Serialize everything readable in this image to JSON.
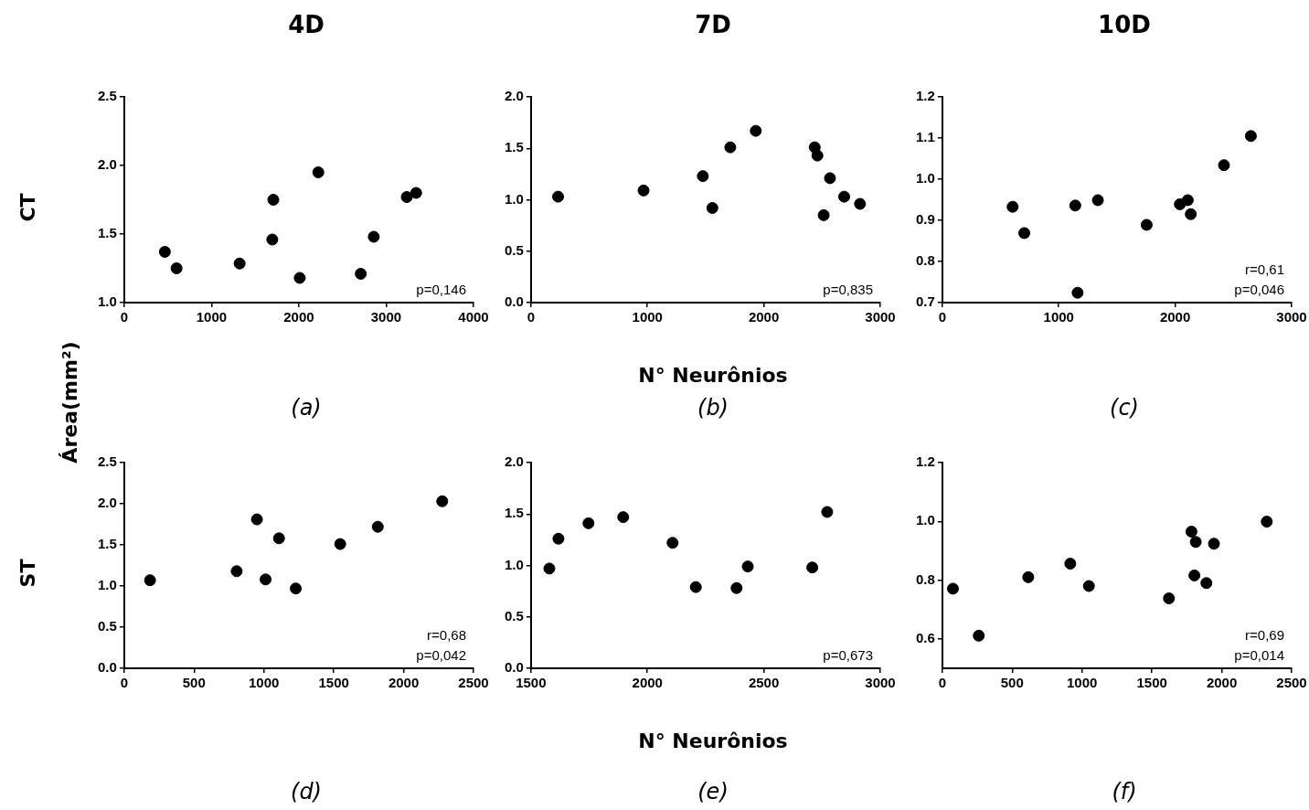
{
  "chart_data": [
    {
      "type": "scatter",
      "title": "4D",
      "subtitle": "(a)",
      "ylabel": "Área(mm²)",
      "annotations": [
        "CT",
        "p=0,146"
      ],
      "color": "#000000",
      "marker": "circle",
      "x": [
        466,
        600,
        1322,
        1696,
        1708,
        2010,
        2223,
        2709,
        2858,
        3236,
        3343
      ],
      "values": [
        1.37,
        1.25,
        1.285,
        1.46,
        1.75,
        1.18,
        1.95,
        1.21,
        1.48,
        1.77,
        1.8
      ],
      "xlim": [
        0,
        4000
      ],
      "xticks": [
        0,
        1000,
        2000,
        3000,
        4000
      ],
      "ylim": [
        1.0,
        2.5
      ],
      "yticks": [
        {
          "value": 1.0,
          "label": "1.0"
        },
        1.5,
        {
          "value": 2.0,
          "label": "2.0"
        },
        2.5
      ],
      "grid": false,
      "legend": false
    },
    {
      "type": "scatter",
      "title": "7D",
      "subtitle": "(b)",
      "xlabel": "N° Neurônios",
      "annotations": [
        "p=0,835"
      ],
      "color": "#000000",
      "marker": "circle",
      "x": [
        233,
        967,
        1476,
        1558,
        1712,
        1931,
        2437,
        2460,
        2514,
        2568,
        2690,
        2826
      ],
      "values": [
        1.03,
        1.09,
        1.23,
        0.92,
        1.51,
        1.67,
        1.51,
        1.43,
        0.85,
        1.21,
        1.03,
        0.96
      ],
      "xlim": [
        0,
        3000
      ],
      "xticks": [
        0,
        1000,
        2000,
        3000
      ],
      "ylim": [
        0.0,
        2.0
      ],
      "yticks": [
        {
          "value": 0,
          "label": "0.0"
        },
        0.5,
        {
          "value": 1.0,
          "label": "1.0"
        },
        1.5,
        {
          "value": 2.0,
          "label": "2.0"
        }
      ],
      "grid": false,
      "legend": false
    },
    {
      "type": "scatter",
      "title": "10D",
      "subtitle": "(c)",
      "annotations": [
        "r=0,61",
        "p=0,046"
      ],
      "color": "#000000",
      "marker": "circle",
      "x": [
        604,
        704,
        1142,
        1162,
        1336,
        1755,
        2040,
        2108,
        2134,
        2419,
        2650
      ],
      "values": [
        0.933,
        0.869,
        0.936,
        0.724,
        0.949,
        0.889,
        0.939,
        0.949,
        0.915,
        1.034,
        1.105
      ],
      "xlim": [
        0,
        3000
      ],
      "xticks": [
        0,
        1000,
        2000,
        3000
      ],
      "ylim": [
        0.7,
        1.2
      ],
      "yticks": [
        0.7,
        0.8,
        0.9,
        {
          "value": 1.0,
          "label": "1.0"
        },
        1.1,
        1.2
      ],
      "grid": false,
      "legend": false
    },
    {
      "type": "scatter",
      "subtitle": "(d)",
      "annotations": [
        "ST",
        "r=0,68",
        "p=0,042"
      ],
      "color": "#000000",
      "marker": "circle",
      "x": [
        185,
        805,
        950,
        1012,
        1108,
        1228,
        1546,
        1815,
        2276
      ],
      "values": [
        1.07,
        1.18,
        1.81,
        1.08,
        1.58,
        0.97,
        1.51,
        1.72,
        2.03
      ],
      "xlim": [
        0,
        2500
      ],
      "xticks": [
        0,
        500,
        1000,
        1500,
        2000,
        2500
      ],
      "ylim": [
        0.0,
        2.5
      ],
      "yticks": [
        {
          "value": 0,
          "label": "0.0"
        },
        0.5,
        {
          "value": 1.0,
          "label": "1.0"
        },
        1.5,
        {
          "value": 2.0,
          "label": "2.0"
        },
        2.5
      ],
      "grid": false,
      "legend": false
    },
    {
      "type": "scatter",
      "subtitle": "(e)",
      "xlabel": "N° Neurônios",
      "annotations": [
        "p=0,673"
      ],
      "color": "#000000",
      "marker": "circle",
      "x": [
        1579,
        1618,
        1747,
        1896,
        2108,
        2208,
        2383,
        2431,
        2708,
        2772
      ],
      "values": [
        0.97,
        1.26,
        1.41,
        1.47,
        1.22,
        0.79,
        0.78,
        0.99,
        0.98,
        1.52
      ],
      "xlim": [
        1500,
        3000
      ],
      "xticks": [
        1500,
        2000,
        2500,
        3000
      ],
      "ylim": [
        0.0,
        2.0
      ],
      "yticks": [
        {
          "value": 0,
          "label": "0.0"
        },
        0.5,
        {
          "value": 1.0,
          "label": "1.0"
        },
        1.5,
        {
          "value": 2.0,
          "label": "2.0"
        }
      ],
      "grid": false,
      "legend": false
    },
    {
      "type": "scatter",
      "subtitle": "(f)",
      "annotations": [
        "r=0,69",
        "p=0,014"
      ],
      "color": "#000000",
      "marker": "circle",
      "x": [
        76,
        261,
        615,
        916,
        1049,
        1622,
        1783,
        1804,
        1814,
        1890,
        1944,
        2322
      ],
      "values": [
        0.771,
        0.611,
        0.81,
        0.856,
        0.78,
        0.738,
        0.965,
        0.816,
        0.93,
        0.79,
        0.924,
        0.999
      ],
      "xlim": [
        0,
        2500
      ],
      "xticks": [
        0,
        500,
        1000,
        1500,
        2000,
        2500
      ],
      "ylim": [
        0.5,
        1.2
      ],
      "yticks": [
        0.6,
        0.8,
        {
          "value": 1.0,
          "label": "1.0"
        },
        1.2
      ],
      "grid": false,
      "legend": false
    }
  ]
}
